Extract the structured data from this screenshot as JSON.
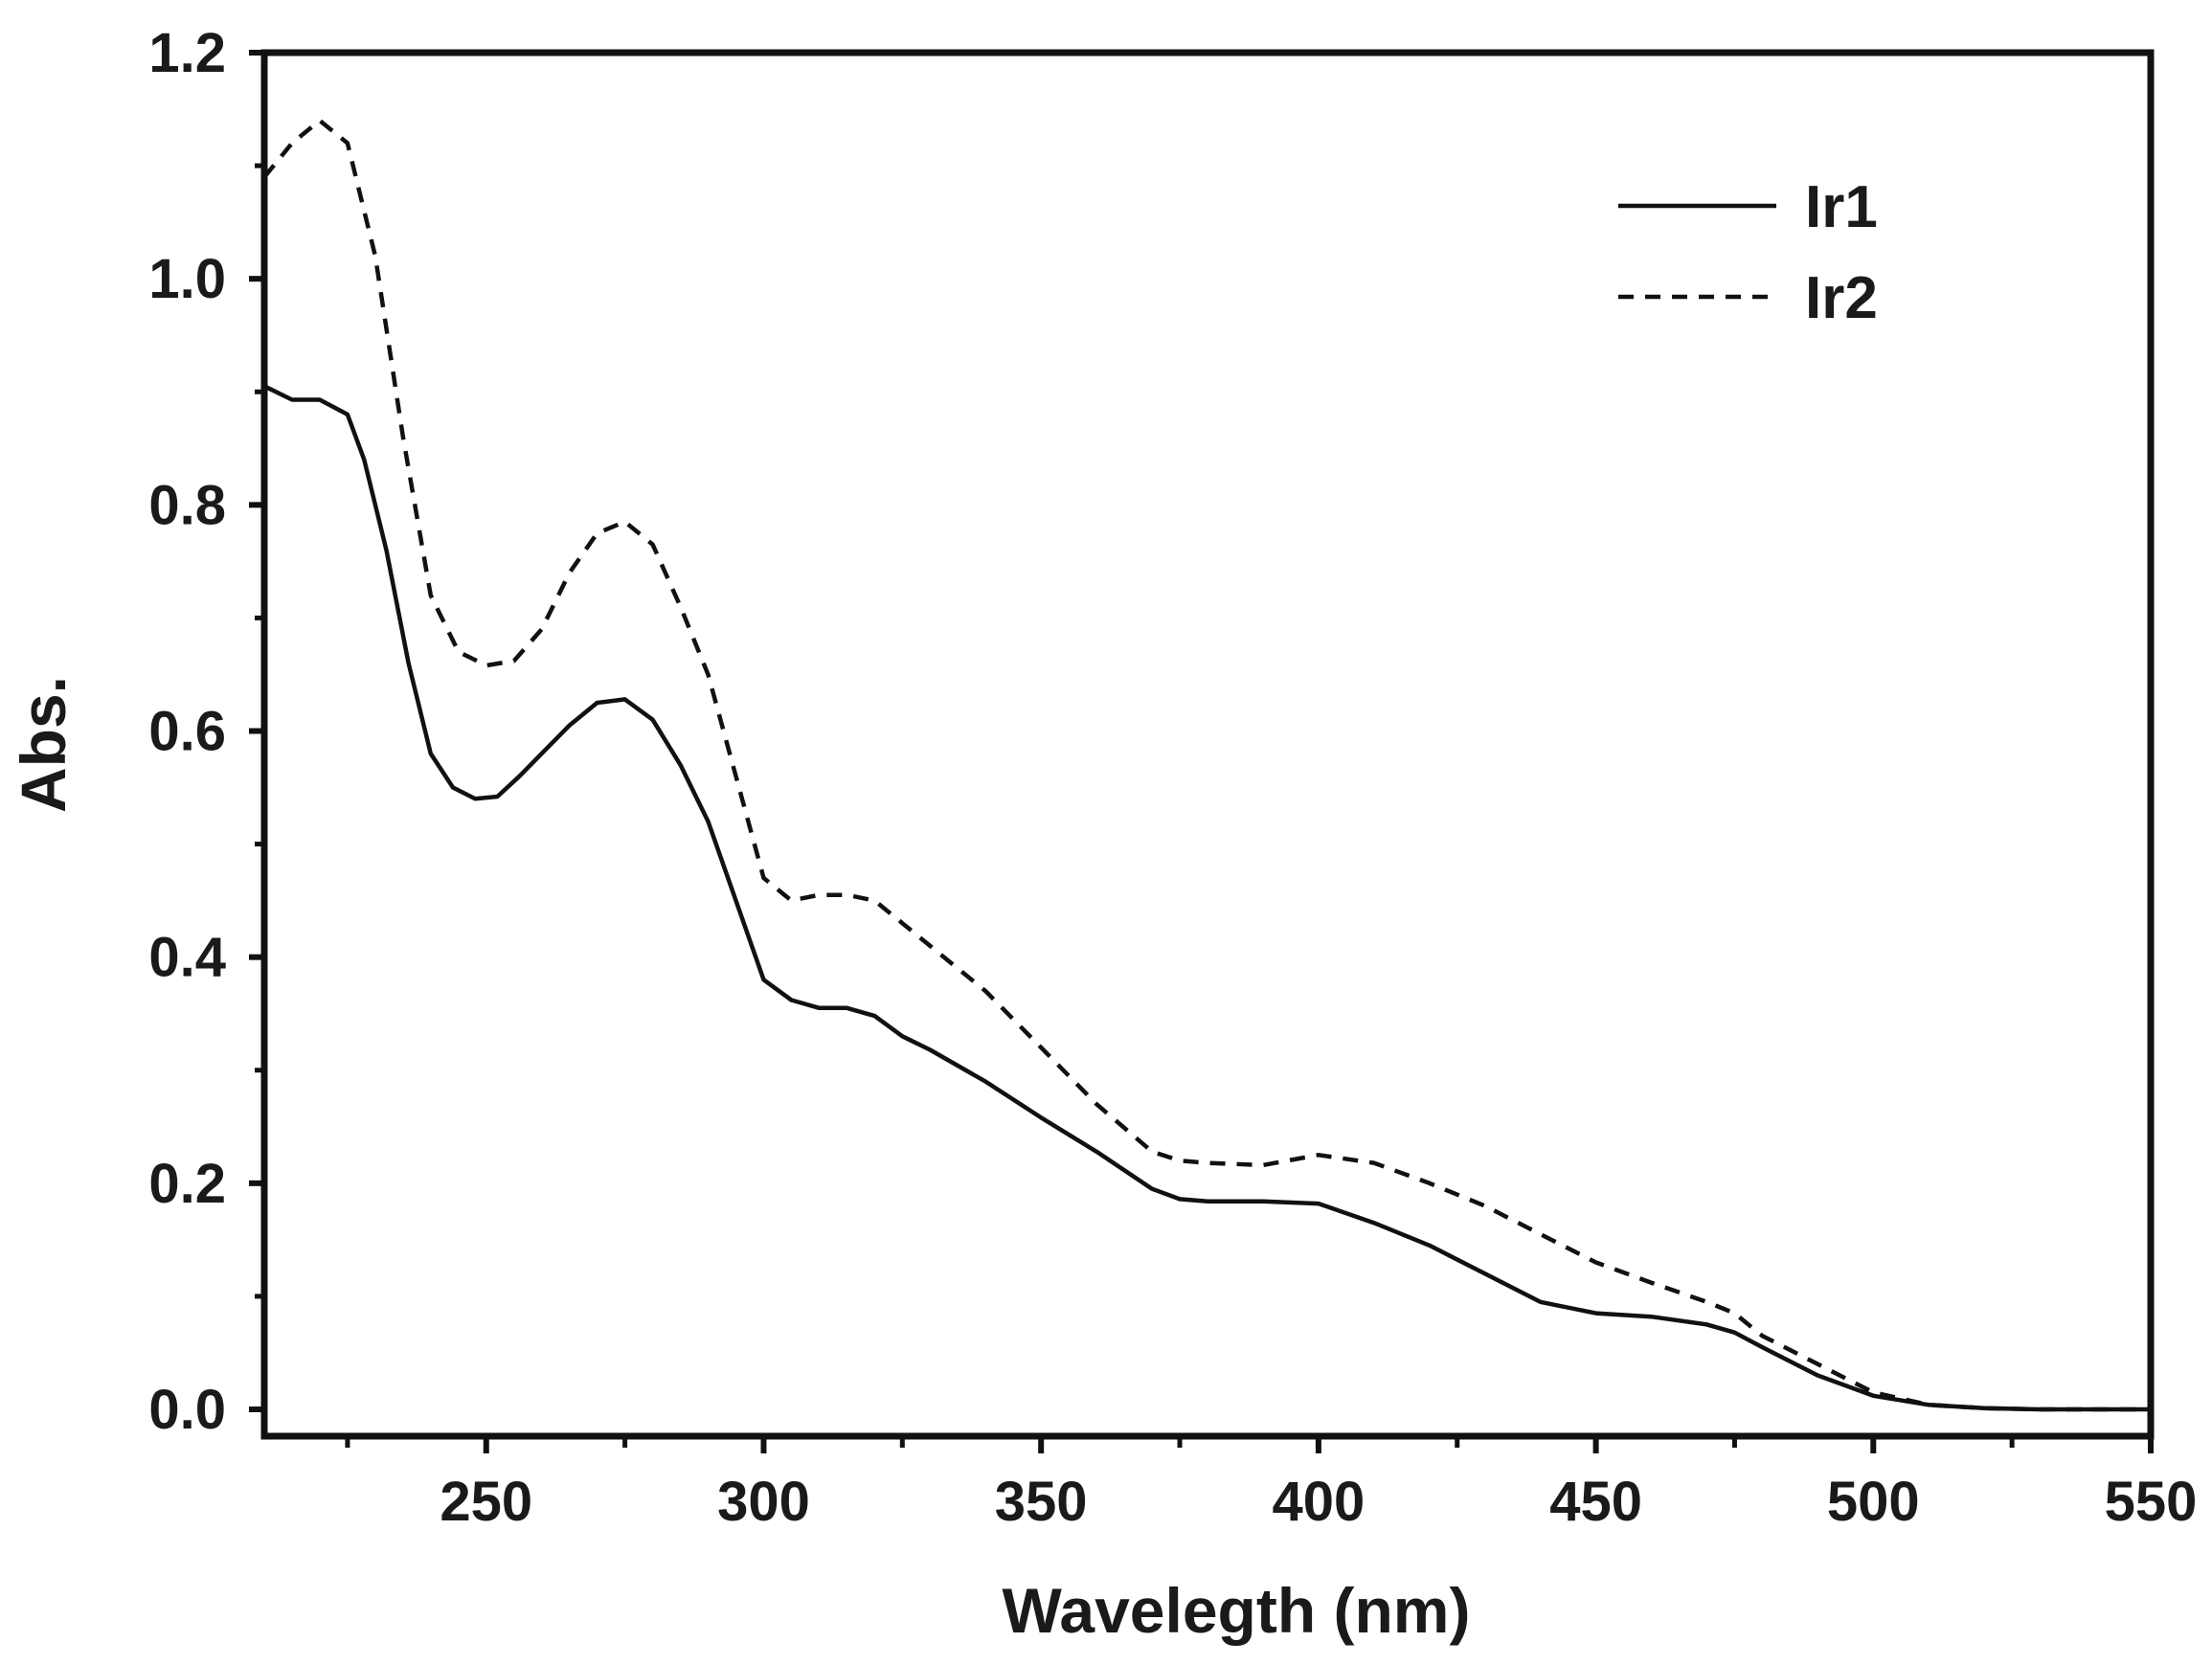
{
  "chart_data": {
    "type": "line",
    "title": "",
    "xlabel": "Wavelegth (nm)",
    "ylabel": "Abs.",
    "xlim": [
      210,
      550
    ],
    "ylim": [
      0.0,
      1.2
    ],
    "xticks": [
      250,
      300,
      350,
      400,
      450,
      500,
      550
    ],
    "xtick_labels": [
      "250",
      "300",
      "350",
      "400",
      "450",
      "500",
      "550"
    ],
    "yticks": [
      0.0,
      0.2,
      0.4,
      0.6,
      0.8,
      1.0,
      1.2
    ],
    "ytick_labels": [
      "0.0",
      "0.2",
      "0.4",
      "0.6",
      "0.8",
      "1.0",
      "1.2"
    ],
    "legend_position": "top-right",
    "grid": false,
    "series": [
      {
        "name": "Ir1",
        "style": "solid",
        "x": [
          210,
          215,
          220,
          225,
          228,
          232,
          236,
          240,
          244,
          248,
          252,
          256,
          260,
          265,
          270,
          275,
          280,
          285,
          290,
          295,
          300,
          305,
          310,
          315,
          320,
          325,
          330,
          340,
          350,
          360,
          370,
          375,
          380,
          390,
          400,
          410,
          420,
          430,
          440,
          450,
          460,
          470,
          475,
          480,
          490,
          500,
          510,
          520,
          530,
          540,
          550
        ],
        "y": [
          0.905,
          0.893,
          0.893,
          0.88,
          0.84,
          0.76,
          0.66,
          0.58,
          0.55,
          0.54,
          0.542,
          0.56,
          0.58,
          0.605,
          0.625,
          0.628,
          0.61,
          0.57,
          0.52,
          0.45,
          0.38,
          0.362,
          0.355,
          0.355,
          0.348,
          0.33,
          0.318,
          0.29,
          0.258,
          0.228,
          0.195,
          0.186,
          0.184,
          0.184,
          0.182,
          0.165,
          0.145,
          0.12,
          0.095,
          0.085,
          0.082,
          0.075,
          0.068,
          0.055,
          0.03,
          0.012,
          0.004,
          0.001,
          0.0,
          0.0,
          0.0
        ]
      },
      {
        "name": "Ir2",
        "style": "dashed",
        "x": [
          210,
          215,
          220,
          225,
          230,
          235,
          240,
          245,
          250,
          255,
          260,
          265,
          270,
          275,
          280,
          285,
          290,
          295,
          300,
          305,
          310,
          315,
          320,
          325,
          330,
          340,
          350,
          360,
          370,
          375,
          380,
          390,
          400,
          410,
          420,
          430,
          440,
          450,
          460,
          470,
          475,
          480,
          490,
          500,
          510,
          520,
          530,
          540,
          550
        ],
        "y": [
          1.09,
          1.12,
          1.14,
          1.12,
          1.02,
          0.86,
          0.72,
          0.67,
          0.658,
          0.662,
          0.69,
          0.74,
          0.775,
          0.785,
          0.765,
          0.71,
          0.65,
          0.56,
          0.47,
          0.45,
          0.455,
          0.455,
          0.45,
          0.43,
          0.41,
          0.37,
          0.32,
          0.27,
          0.228,
          0.22,
          0.218,
          0.216,
          0.225,
          0.218,
          0.2,
          0.18,
          0.155,
          0.13,
          0.112,
          0.095,
          0.085,
          0.065,
          0.04,
          0.015,
          0.004,
          0.001,
          0.0,
          0.0,
          0.0
        ]
      }
    ]
  }
}
